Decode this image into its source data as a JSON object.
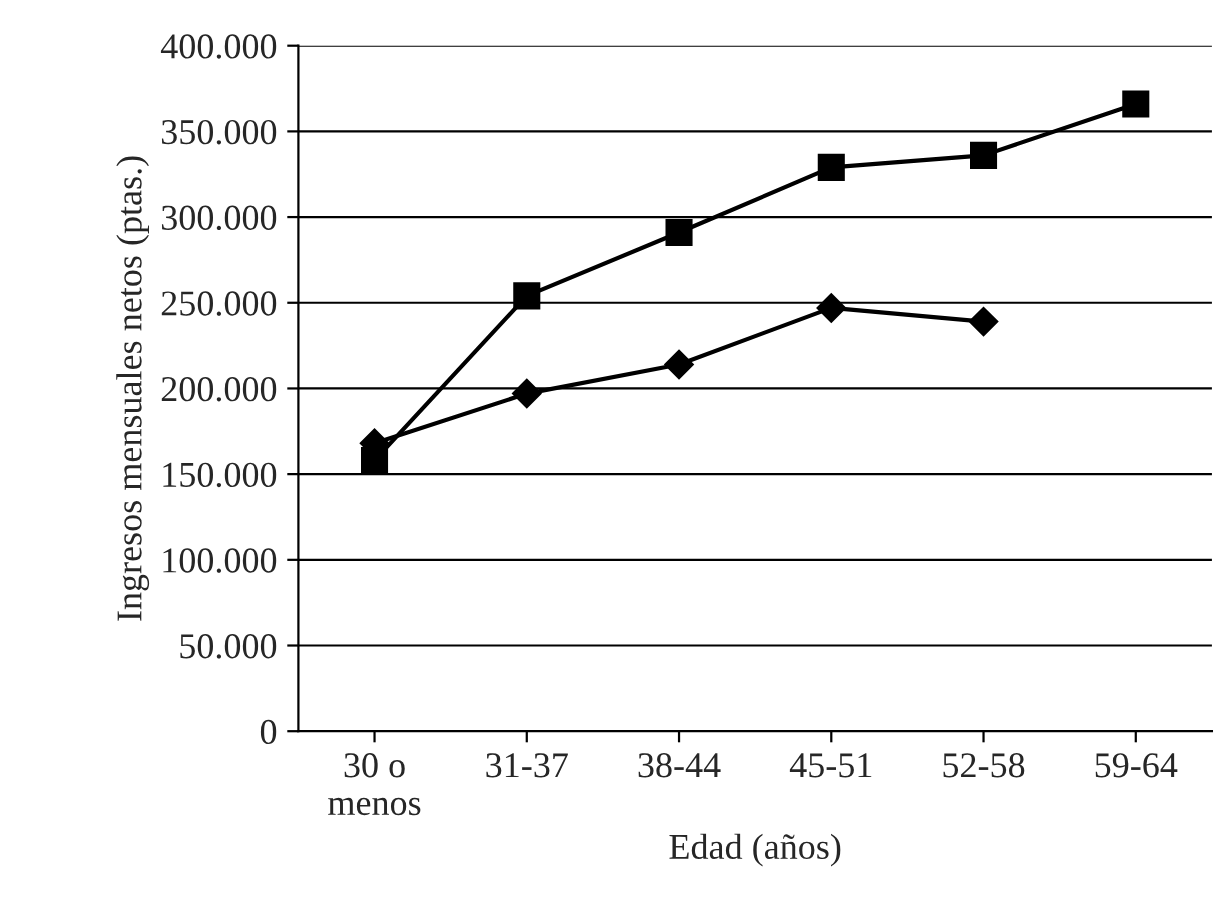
{
  "chart_data": {
    "type": "line",
    "xlabel": "Edad (años)",
    "ylabel": "Ingresos mensuales netos (ptas.)",
    "categories": [
      "30 o\nmenos",
      "31-37",
      "38-44",
      "45-51",
      "52-58",
      "59-64"
    ],
    "series": [
      {
        "color": "#000000",
        "marker": "square",
        "values": [
          158000,
          254000,
          291000,
          329000,
          336000,
          366000
        ]
      },
      {
        "color": "#000000",
        "marker": "diamond",
        "values": [
          168000,
          197000,
          214000,
          247000,
          239000,
          null
        ]
      }
    ],
    "ylim": [
      0,
      400000
    ],
    "yticks": [
      {
        "value": 0,
        "label": "0"
      },
      {
        "value": 50000,
        "label": "50.000"
      },
      {
        "value": 100000,
        "label": "100.000"
      },
      {
        "value": 150000,
        "label": "150.000"
      },
      {
        "value": 200000,
        "label": "200.000"
      },
      {
        "value": 250000,
        "label": "250.000"
      },
      {
        "value": 300000,
        "label": "300.000"
      },
      {
        "value": 350000,
        "label": "350.000"
      },
      {
        "value": 400000,
        "label": "400.000"
      }
    ],
    "grid": "y",
    "line_style": "solid"
  }
}
